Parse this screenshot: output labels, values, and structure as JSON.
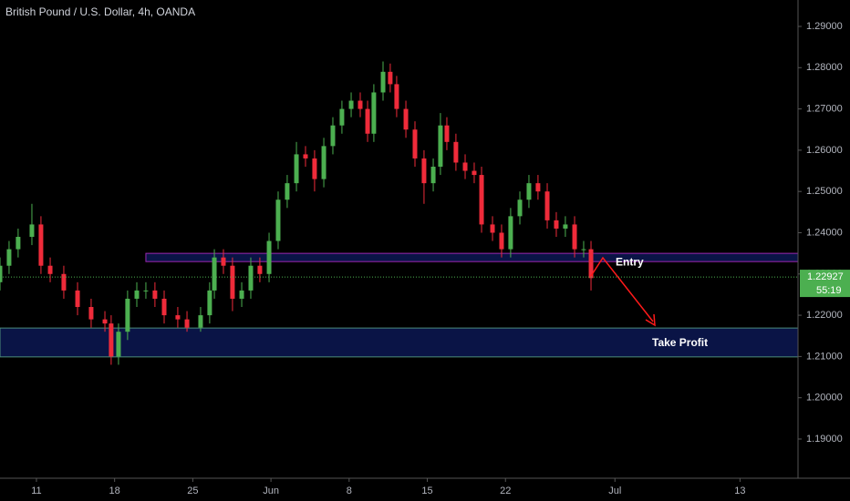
{
  "chart_data": {
    "type": "candlestick",
    "title": "British Pound / U.S. Dollar, 4h, OANDA",
    "up_color": "#4caf50",
    "down_color": "#ef2b3a",
    "x": [
      -2.33,
      -1.75,
      -1.17,
      -0.29,
      0.29,
      0.88,
      1.75,
      2.63,
      3.5,
      4.38,
      4.78,
      5.25,
      5.83,
      6.42,
      7,
      7.58,
      8.17,
      9.04,
      9.63,
      10.5,
      11.08,
      11.38,
      11.96,
      12.54,
      13.13,
      13.71,
      14.29,
      14.88,
      15.46,
      16.04,
      16.63,
      17.21,
      17.79,
      18.38,
      18.96,
      19.54,
      20.13,
      20.71,
      21.18,
      21.58,
      22.17,
      22.63,
      23.04,
      23.63,
      24.21,
      24.79,
      25.38,
      25.84,
      26.25,
      26.83,
      27.42,
      28,
      28.47,
      29.17,
      29.75,
      30.33,
      30.92,
      31.5,
      32.08,
      32.67,
      33.25,
      33.83,
      34.42,
      35,
      35.47
    ],
    "open": [
      1.228,
      1.232,
      1.236,
      1.239,
      1.242,
      1.232,
      1.23,
      1.226,
      1.222,
      1.219,
      1.218,
      1.21,
      1.216,
      1.224,
      1.226,
      1.226,
      1.224,
      1.22,
      1.219,
      1.217,
      1.22,
      1.226,
      1.234,
      1.232,
      1.224,
      1.226,
      1.232,
      1.23,
      1.238,
      1.248,
      1.252,
      1.259,
      1.258,
      1.253,
      1.261,
      1.266,
      1.27,
      1.272,
      1.27,
      1.264,
      1.274,
      1.279,
      1.276,
      1.27,
      1.265,
      1.258,
      1.252,
      1.256,
      1.266,
      1.262,
      1.257,
      1.255,
      1.254,
      1.242,
      1.24,
      1.236,
      1.244,
      1.248,
      1.252,
      1.25,
      1.243,
      1.241,
      1.242,
      1.236,
      1.236
    ],
    "high": [
      1.234,
      1.238,
      1.241,
      1.247,
      1.244,
      1.234,
      1.232,
      1.228,
      1.224,
      1.221,
      1.22,
      1.218,
      1.226,
      1.228,
      1.228,
      1.228,
      1.226,
      1.222,
      1.221,
      1.222,
      1.228,
      1.236,
      1.236,
      1.234,
      1.228,
      1.234,
      1.234,
      1.24,
      1.25,
      1.254,
      1.262,
      1.261,
      1.26,
      1.263,
      1.268,
      1.272,
      1.274,
      1.274,
      1.272,
      1.276,
      1.2815,
      1.281,
      1.278,
      1.272,
      1.267,
      1.26,
      1.258,
      1.269,
      1.268,
      1.264,
      1.259,
      1.257,
      1.256,
      1.244,
      1.242,
      1.246,
      1.25,
      1.254,
      1.254,
      1.252,
      1.245,
      1.244,
      1.244,
      1.238,
      1.238
    ],
    "low": [
      1.226,
      1.23,
      1.234,
      1.237,
      1.23,
      1.228,
      1.224,
      1.22,
      1.217,
      1.216,
      1.208,
      1.208,
      1.214,
      1.222,
      1.224,
      1.222,
      1.218,
      1.217,
      1.216,
      1.216,
      1.218,
      1.224,
      1.23,
      1.221,
      1.222,
      1.224,
      1.228,
      1.228,
      1.236,
      1.246,
      1.25,
      1.256,
      1.25,
      1.251,
      1.259,
      1.264,
      1.268,
      1.268,
      1.262,
      1.262,
      1.272,
      1.274,
      1.268,
      1.263,
      1.256,
      1.247,
      1.25,
      1.254,
      1.26,
      1.255,
      1.253,
      1.252,
      1.24,
      1.238,
      1.234,
      1.234,
      1.242,
      1.246,
      1.248,
      1.241,
      1.239,
      1.239,
      1.234,
      1.234,
      1.226
    ],
    "close": [
      1.232,
      1.236,
      1.239,
      1.242,
      1.232,
      1.23,
      1.226,
      1.222,
      1.219,
      1.218,
      1.21,
      1.216,
      1.224,
      1.226,
      1.226,
      1.224,
      1.22,
      1.219,
      1.217,
      1.22,
      1.226,
      1.234,
      1.232,
      1.224,
      1.226,
      1.232,
      1.23,
      1.238,
      1.248,
      1.252,
      1.259,
      1.258,
      1.253,
      1.261,
      1.266,
      1.27,
      1.272,
      1.27,
      1.264,
      1.274,
      1.279,
      1.276,
      1.27,
      1.265,
      1.258,
      1.252,
      1.256,
      1.266,
      1.262,
      1.257,
      1.255,
      1.254,
      1.242,
      1.24,
      1.236,
      1.244,
      1.248,
      1.252,
      1.25,
      1.243,
      1.241,
      1.242,
      1.236,
      1.236,
      1.229
    ],
    "xlim": [
      -2.33,
      48.71
    ],
    "xticks": [
      {
        "value": 0,
        "label": "11"
      },
      {
        "value": 5,
        "label": "18"
      },
      {
        "value": 10,
        "label": "25"
      },
      {
        "value": 15,
        "label": "Jun"
      },
      {
        "value": 20,
        "label": "8"
      },
      {
        "value": 25,
        "label": "15"
      },
      {
        "value": 30,
        "label": "22"
      },
      {
        "value": 37,
        "label": "Jul"
      },
      {
        "value": 45,
        "label": "13"
      }
    ],
    "ylim": [
      1.1805,
      1.2964
    ],
    "yticks": [
      {
        "value": 1.29,
        "label": "1.29000"
      },
      {
        "value": 1.28,
        "label": "1.28000"
      },
      {
        "value": 1.27,
        "label": "1.27000"
      },
      {
        "value": 1.26,
        "label": "1.26000"
      },
      {
        "value": 1.25,
        "label": "1.25000"
      },
      {
        "value": 1.24,
        "label": "1.24000"
      },
      {
        "value": 1.23,
        "label": "1.23000"
      },
      {
        "value": 1.22,
        "label": "1.22000"
      },
      {
        "value": 1.21,
        "label": "1.21000"
      },
      {
        "value": 1.2,
        "label": "1.20000"
      },
      {
        "value": 1.19,
        "label": "1.19000"
      }
    ],
    "last_price": 1.22927,
    "countdown": "55:19",
    "zones": [
      {
        "label": "Entry",
        "range": [
          1.233,
          1.235
        ],
        "x_start": 7,
        "fill": "#0a1446",
        "stroke": "#9c27b0"
      },
      {
        "label": "Take Profit",
        "range": [
          1.2099,
          1.2169
        ],
        "fill": "#0a1446",
        "stroke": "#4c8c7a"
      }
    ]
  }
}
